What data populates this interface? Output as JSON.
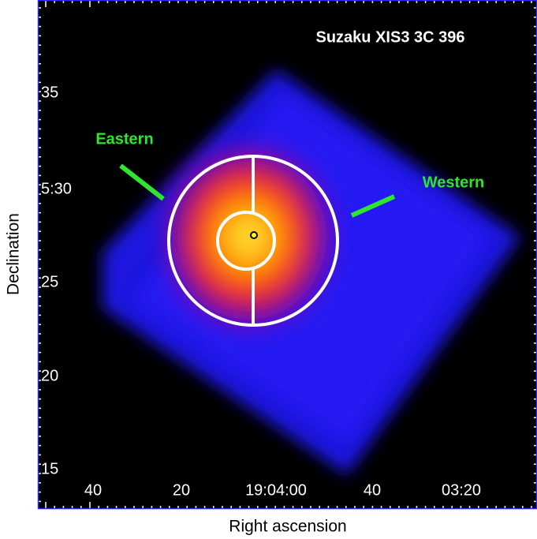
{
  "image": {
    "title": "Suzaku XIS3 3C 396",
    "x_label": "Right ascension",
    "y_label": "Declination",
    "x_tick_labels": [
      "40",
      "20",
      "19:04:00",
      "40",
      "03:20"
    ],
    "y_tick_labels": [
      "35",
      "5:30",
      "25",
      "20",
      "15"
    ],
    "regions": [
      "Eastern",
      "Western"
    ]
  }
}
